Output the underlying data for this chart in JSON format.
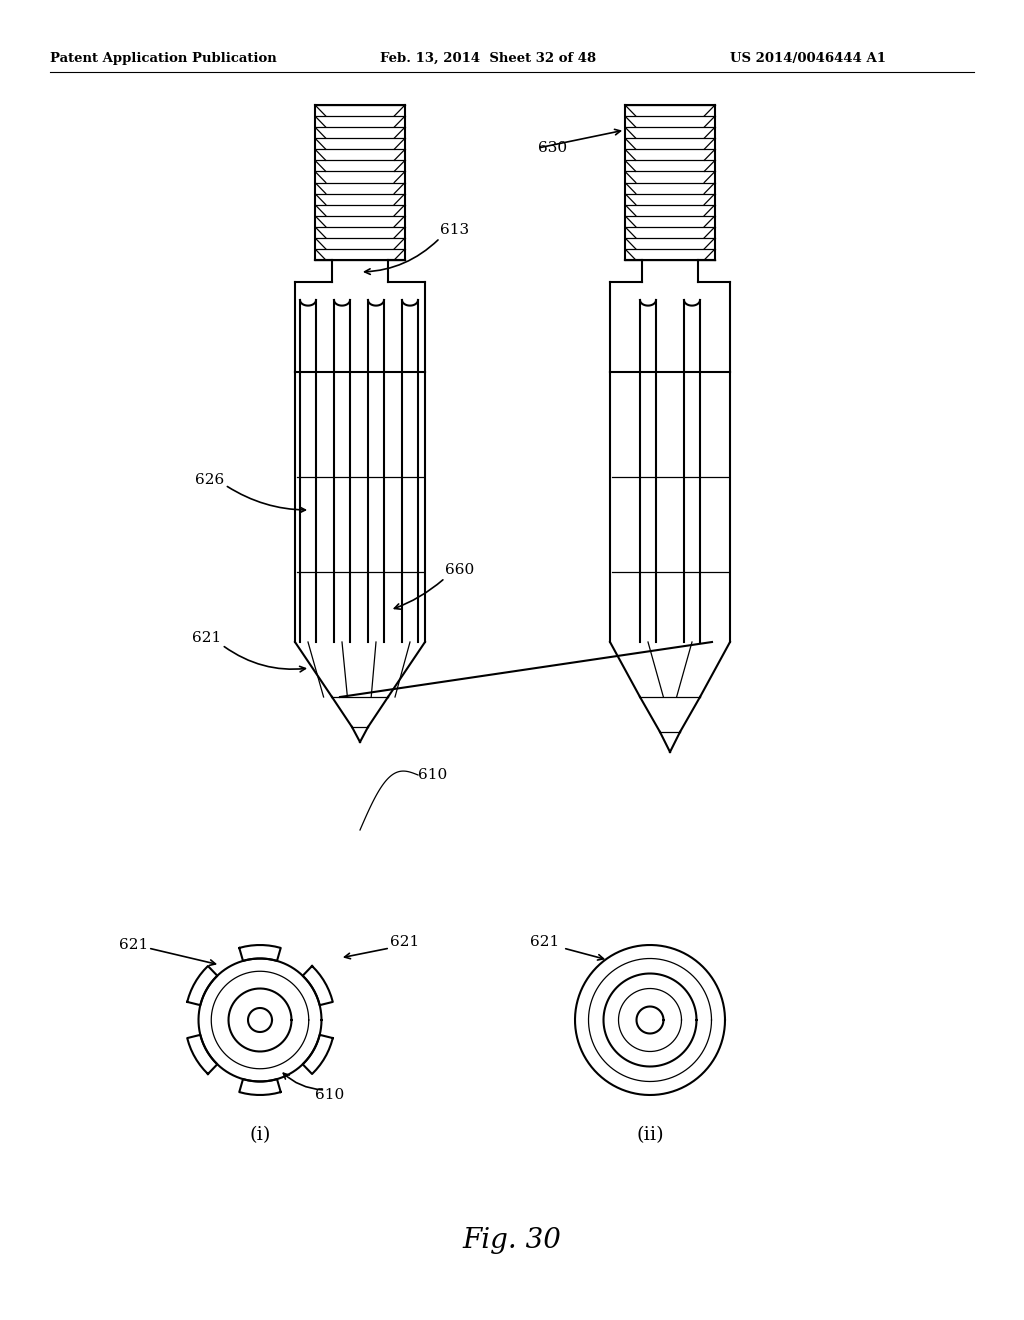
{
  "title": "Fig. 30",
  "header_left": "Patent Application Publication",
  "header_mid": "Feb. 13, 2014  Sheet 32 of 48",
  "header_right": "US 2014/0046444 A1",
  "background_color": "#ffffff",
  "line_color": "#000000"
}
